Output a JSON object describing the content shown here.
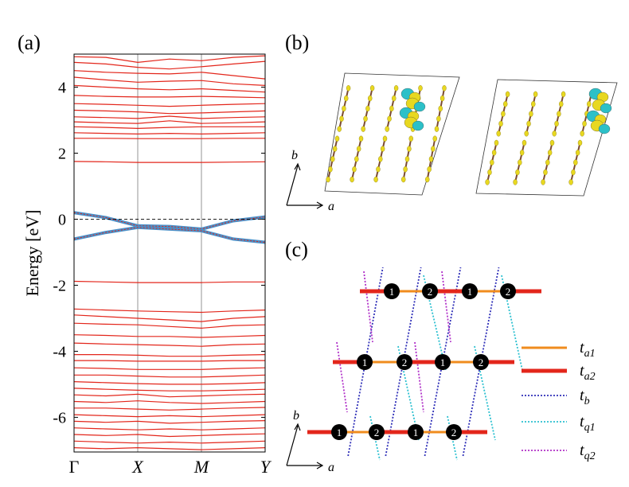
{
  "chart_data": {
    "type": "line",
    "ylabel": "Energy [eV]",
    "x": [
      0,
      0.5,
      1,
      1.5,
      2,
      2.5,
      3
    ],
    "xlim": [
      0,
      3
    ],
    "xticks": [
      {
        "value": 0,
        "label": "Γ"
      },
      {
        "value": 1,
        "label": "X"
      },
      {
        "value": 2,
        "label": "M"
      },
      {
        "value": 3,
        "label": "Y"
      }
    ],
    "xgrid": true,
    "ylim": [
      -7.05,
      5.0
    ],
    "yticks": [
      -6,
      -4,
      -2,
      0,
      2,
      4
    ],
    "hline": 0,
    "series": [
      {
        "color": "#e3261b",
        "values": [
          4.92,
          4.9,
          4.75,
          4.85,
          4.8,
          4.9,
          4.95
        ]
      },
      {
        "color": "#e3261b",
        "values": [
          4.75,
          4.7,
          4.6,
          4.55,
          4.62,
          4.7,
          4.78
        ]
      },
      {
        "color": "#e3261b",
        "values": [
          4.5,
          4.45,
          4.42,
          4.4,
          4.45,
          4.35,
          4.25
        ]
      },
      {
        "color": "#e3261b",
        "values": [
          4.3,
          4.22,
          4.15,
          4.18,
          4.2,
          4.1,
          4.05
        ]
      },
      {
        "color": "#e3261b",
        "values": [
          4.05,
          4.0,
          3.95,
          3.92,
          3.95,
          3.9,
          3.85
        ]
      },
      {
        "color": "#e3261b",
        "values": [
          3.75,
          3.72,
          3.7,
          3.7,
          3.72,
          3.7,
          3.68
        ]
      },
      {
        "color": "#e3261b",
        "values": [
          3.5,
          3.48,
          3.45,
          3.42,
          3.45,
          3.48,
          3.5
        ]
      },
      {
        "color": "#e3261b",
        "values": [
          3.3,
          3.28,
          3.25,
          3.2,
          3.22,
          3.25,
          3.28
        ]
      },
      {
        "color": "#e3261b",
        "values": [
          3.1,
          3.08,
          3.05,
          3.12,
          3.05,
          3.08,
          3.1
        ]
      },
      {
        "color": "#e3261b",
        "values": [
          2.95,
          2.92,
          2.9,
          2.98,
          2.9,
          2.92,
          2.95
        ]
      },
      {
        "color": "#e3261b",
        "values": [
          2.8,
          2.78,
          2.75,
          2.78,
          2.8,
          2.8,
          2.8
        ]
      },
      {
        "color": "#e3261b",
        "values": [
          2.62,
          2.6,
          2.58,
          2.6,
          2.58,
          2.6,
          2.62
        ]
      },
      {
        "color": "#e3261b",
        "values": [
          2.45,
          2.45,
          2.44,
          2.44,
          2.44,
          2.45,
          2.45
        ]
      },
      {
        "color": "#e3261b",
        "values": [
          1.75,
          1.74,
          1.72,
          1.72,
          1.72,
          1.73,
          1.74
        ]
      },
      {
        "color": "#e3261b",
        "values": [
          -1.88,
          -1.9,
          -1.92,
          -1.92,
          -1.92,
          -1.9,
          -1.9
        ]
      },
      {
        "color": "#e3261b",
        "values": [
          -2.72,
          -2.75,
          -2.78,
          -2.8,
          -2.82,
          -2.78,
          -2.75
        ]
      },
      {
        "color": "#e3261b",
        "values": [
          -2.9,
          -2.95,
          -3.0,
          -3.05,
          -3.1,
          -3.0,
          -2.95
        ]
      },
      {
        "color": "#e3261b",
        "values": [
          -3.15,
          -3.18,
          -3.2,
          -3.25,
          -3.3,
          -3.22,
          -3.2
        ]
      },
      {
        "color": "#e3261b",
        "values": [
          -3.5,
          -3.52,
          -3.55,
          -3.55,
          -3.58,
          -3.55,
          -3.52
        ]
      },
      {
        "color": "#e3261b",
        "values": [
          -3.75,
          -3.78,
          -3.8,
          -3.82,
          -3.85,
          -3.8,
          -3.78
        ]
      },
      {
        "color": "#e3261b",
        "values": [
          -4.1,
          -4.1,
          -4.12,
          -4.15,
          -4.15,
          -4.12,
          -4.1
        ]
      },
      {
        "color": "#e3261b",
        "values": [
          -4.28,
          -4.28,
          -4.3,
          -4.3,
          -4.3,
          -4.28,
          -4.28
        ]
      },
      {
        "color": "#e3261b",
        "values": [
          -4.5,
          -4.52,
          -4.55,
          -4.55,
          -4.55,
          -4.52,
          -4.5
        ]
      },
      {
        "color": "#e3261b",
        "values": [
          -4.72,
          -4.72,
          -4.75,
          -4.78,
          -4.78,
          -4.75,
          -4.72
        ]
      },
      {
        "color": "#e3261b",
        "values": [
          -4.92,
          -4.95,
          -4.98,
          -5.0,
          -5.0,
          -4.98,
          -4.95
        ]
      },
      {
        "color": "#e3261b",
        "values": [
          -5.12,
          -5.15,
          -5.18,
          -5.2,
          -5.2,
          -5.18,
          -5.15
        ]
      },
      {
        "color": "#e3261b",
        "values": [
          -5.32,
          -5.35,
          -5.3,
          -5.38,
          -5.35,
          -5.32,
          -5.3
        ]
      },
      {
        "color": "#e3261b",
        "values": [
          -5.52,
          -5.55,
          -5.5,
          -5.55,
          -5.58,
          -5.55,
          -5.52
        ]
      },
      {
        "color": "#e3261b",
        "values": [
          -5.72,
          -5.72,
          -5.75,
          -5.78,
          -5.75,
          -5.72,
          -5.7
        ]
      },
      {
        "color": "#e3261b",
        "values": [
          -5.92,
          -5.95,
          -5.98,
          -5.95,
          -5.98,
          -5.95,
          -5.92
        ]
      },
      {
        "color": "#e3261b",
        "values": [
          -6.12,
          -6.15,
          -6.12,
          -6.18,
          -6.15,
          -6.12,
          -6.1
        ]
      },
      {
        "color": "#e3261b",
        "values": [
          -6.32,
          -6.35,
          -6.38,
          -6.35,
          -6.38,
          -6.35,
          -6.32
        ]
      },
      {
        "color": "#e3261b",
        "values": [
          -6.52,
          -6.55,
          -6.52,
          -6.58,
          -6.55,
          -6.52,
          -6.5
        ]
      },
      {
        "color": "#e3261b",
        "values": [
          -6.72,
          -6.75,
          -6.78,
          -6.75,
          -6.78,
          -6.75,
          -6.72
        ]
      },
      {
        "color": "#e3261b",
        "values": [
          -6.92,
          -6.95,
          -6.92,
          -6.95,
          -6.98,
          -6.95,
          -6.92
        ]
      },
      {
        "color": "#4a90c8",
        "values": [
          0.2,
          0.05,
          -0.2,
          -0.22,
          -0.3,
          -0.05,
          0.07
        ]
      },
      {
        "color": "#4a90c8",
        "values": [
          -0.6,
          -0.4,
          -0.25,
          -0.3,
          -0.35,
          -0.6,
          -0.7
        ]
      }
    ]
  },
  "panel_labels": [
    "(a)",
    "(b)",
    "(c)"
  ],
  "panel_b": {
    "axis_a": "a",
    "axis_b": "b"
  },
  "panel_c": {
    "axis_a": "a",
    "axis_b": "b",
    "nodes": [
      [
        "1",
        "2",
        "1",
        "2"
      ],
      [
        "1",
        "2",
        "1",
        "2"
      ],
      [
        "1",
        "2",
        "1",
        "2"
      ]
    ],
    "legend": [
      {
        "symbol": "t",
        "sub": "a1",
        "color": "#f08c1e",
        "style": "solid"
      },
      {
        "symbol": "t",
        "sub": "a2",
        "color": "#e3261b",
        "style": "solid"
      },
      {
        "symbol": "t",
        "sub": "b",
        "color": "#2f2fb8",
        "style": "dotted"
      },
      {
        "symbol": "t",
        "sub": "q1",
        "color": "#2cc0d0",
        "style": "dotted"
      },
      {
        "symbol": "t",
        "sub": "q2",
        "color": "#b030c8",
        "style": "dotted"
      }
    ]
  }
}
